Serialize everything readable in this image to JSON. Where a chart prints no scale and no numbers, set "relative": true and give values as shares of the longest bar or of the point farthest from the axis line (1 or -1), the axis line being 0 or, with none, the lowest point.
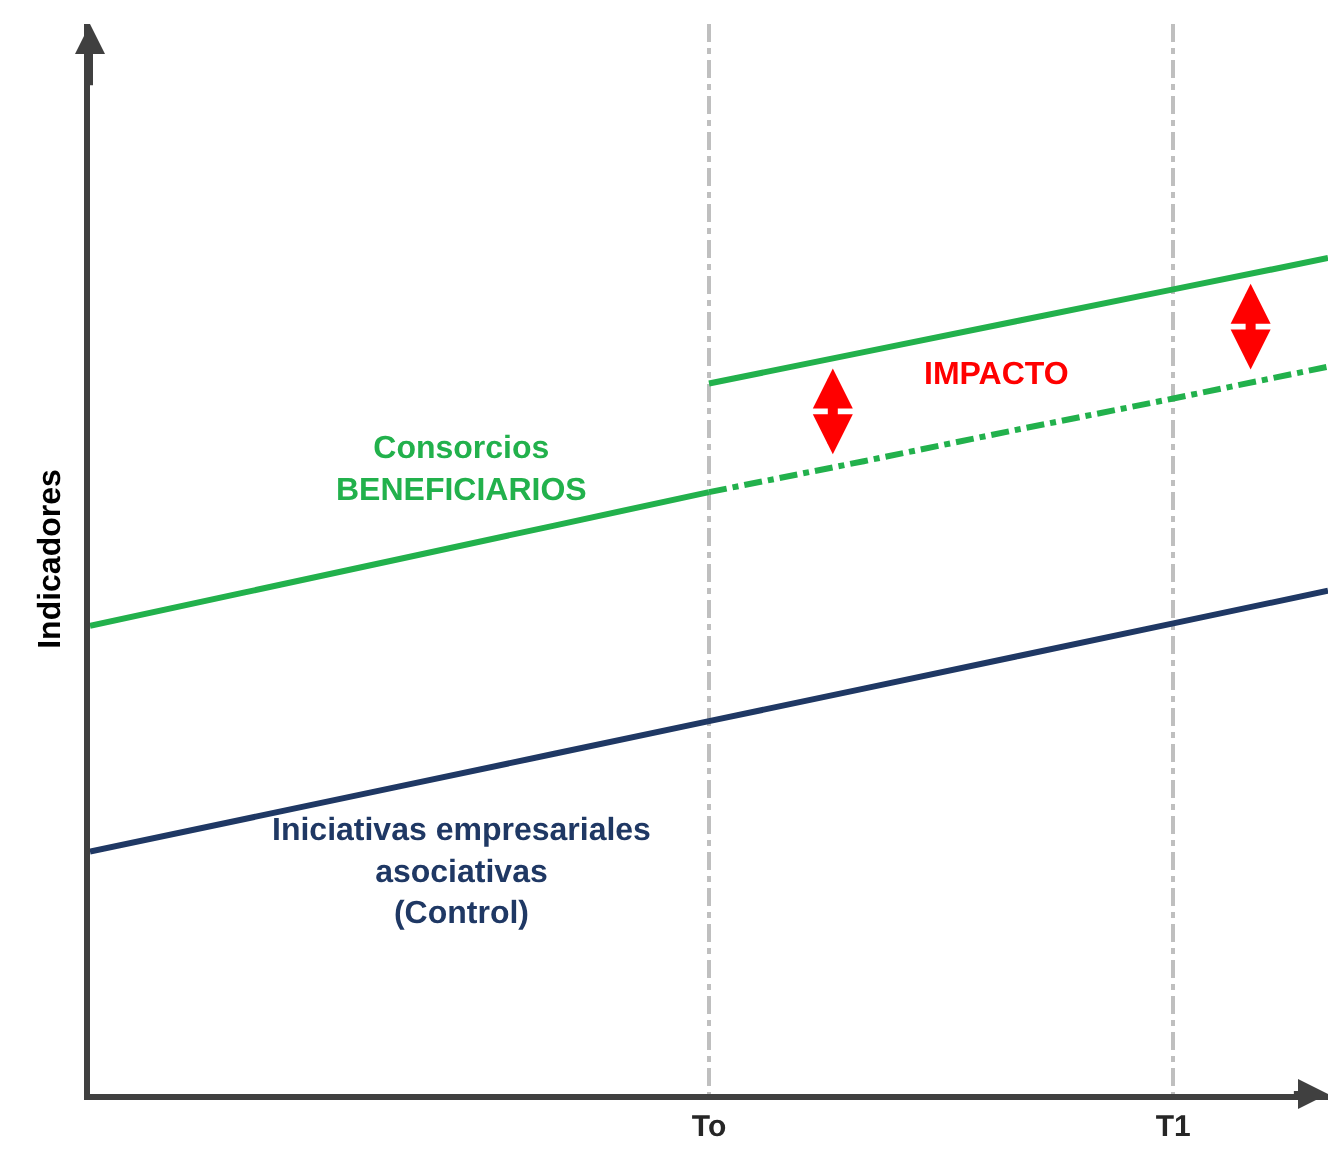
{
  "chart_data": {
    "type": "line",
    "relative": true,
    "ylabel": "Indicadores",
    "categories": [
      null,
      null,
      null,
      null,
      "To",
      null,
      null,
      "T1",
      null
    ],
    "tick_labels": "x",
    "grid": "x",
    "legend": false,
    "marker": "none",
    "series": [
      {
        "name": "Consorcios\nBENEFICIARIOS",
        "color": "#22b14c",
        "values": [
          0.56,
          0.6,
          0.64,
          0.68,
          0.72,
          null,
          null,
          null,
          null
        ]
      },
      {
        "color": "#22b14c",
        "values": [
          null,
          null,
          null,
          null,
          0.72,
          0.757,
          0.795,
          0.832,
          0.87
        ],
        "line_style": "dashed"
      },
      {
        "color": "#22b14c",
        "values": [
          null,
          null,
          null,
          null,
          0.85,
          0.8875,
          0.925,
          0.9625,
          1.0
        ]
      },
      {
        "name": "Iniciativas empresariales\nasociativas\n(Control)",
        "color": "#1f3864",
        "values": [
          0.29,
          0.329,
          0.368,
          0.407,
          0.446,
          0.485,
          0.524,
          0.563,
          0.602
        ]
      }
    ],
    "annotations": [
      "IMPACTO"
    ]
  }
}
